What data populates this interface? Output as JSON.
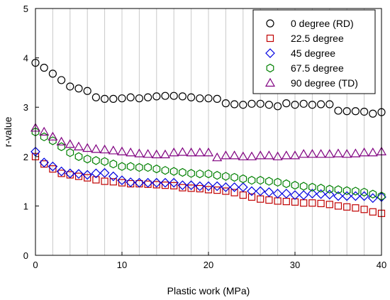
{
  "chart_data": {
    "type": "scatter",
    "xlabel": "Plastic work (MPa)",
    "ylabel": "r-value",
    "xlim": [
      0,
      40
    ],
    "ylim": [
      0,
      5
    ],
    "xticks": [
      0,
      10,
      20,
      30,
      40
    ],
    "yticks": [
      0,
      1,
      2,
      3,
      4,
      5
    ],
    "grid": "vertical",
    "legend_position": "top-right",
    "series": [
      {
        "name": "0 degree (RD)",
        "marker": "circle",
        "color": "#000000",
        "x": [
          0,
          1,
          2,
          3,
          4,
          5,
          6,
          7,
          8,
          9,
          10,
          11,
          12,
          13,
          14,
          15,
          16,
          17,
          18,
          19,
          20,
          21,
          22,
          23,
          24,
          25,
          26,
          27,
          28,
          29,
          30,
          31,
          32,
          33,
          34,
          35,
          36,
          37,
          38,
          39,
          40
        ],
        "y": [
          3.9,
          3.8,
          3.68,
          3.55,
          3.42,
          3.38,
          3.33,
          3.2,
          3.17,
          3.17,
          3.18,
          3.2,
          3.18,
          3.2,
          3.22,
          3.23,
          3.23,
          3.22,
          3.2,
          3.18,
          3.18,
          3.17,
          3.08,
          3.06,
          3.05,
          3.07,
          3.07,
          3.05,
          3.02,
          3.08,
          3.05,
          3.07,
          3.05,
          3.06,
          3.06,
          2.93,
          2.92,
          2.92,
          2.91,
          2.87,
          2.9
        ]
      },
      {
        "name": "22.5 degree",
        "marker": "square",
        "color": "#c00000",
        "x": [
          0,
          1,
          2,
          3,
          4,
          5,
          6,
          7,
          8,
          9,
          10,
          11,
          12,
          13,
          14,
          15,
          16,
          17,
          18,
          19,
          20,
          21,
          22,
          23,
          24,
          25,
          26,
          27,
          28,
          29,
          30,
          31,
          32,
          33,
          34,
          35,
          36,
          37,
          38,
          39,
          40
        ],
        "y": [
          2.0,
          1.85,
          1.75,
          1.66,
          1.63,
          1.6,
          1.57,
          1.53,
          1.5,
          1.49,
          1.47,
          1.45,
          1.45,
          1.44,
          1.43,
          1.42,
          1.41,
          1.37,
          1.36,
          1.35,
          1.33,
          1.32,
          1.3,
          1.27,
          1.22,
          1.18,
          1.14,
          1.12,
          1.1,
          1.09,
          1.08,
          1.06,
          1.06,
          1.05,
          1.03,
          1.0,
          0.98,
          0.96,
          0.93,
          0.88,
          0.85
        ]
      },
      {
        "name": "45 degree",
        "marker": "diamond",
        "color": "#0000e0",
        "x": [
          0,
          1,
          2,
          3,
          4,
          5,
          6,
          7,
          8,
          9,
          10,
          11,
          12,
          13,
          14,
          15,
          16,
          17,
          18,
          19,
          20,
          21,
          22,
          23,
          24,
          25,
          26,
          27,
          28,
          29,
          30,
          31,
          32,
          33,
          34,
          35,
          36,
          37,
          38,
          39,
          40
        ],
        "y": [
          2.1,
          1.88,
          1.8,
          1.7,
          1.66,
          1.65,
          1.63,
          1.66,
          1.67,
          1.6,
          1.52,
          1.48,
          1.47,
          1.47,
          1.47,
          1.47,
          1.47,
          1.42,
          1.42,
          1.4,
          1.4,
          1.4,
          1.38,
          1.38,
          1.38,
          1.3,
          1.3,
          1.28,
          1.25,
          1.25,
          1.22,
          1.22,
          1.25,
          1.24,
          1.23,
          1.2,
          1.2,
          1.2,
          1.2,
          1.16,
          1.18
        ]
      },
      {
        "name": "67.5 degree",
        "marker": "hexagon",
        "color": "#008000",
        "x": [
          0,
          1,
          2,
          3,
          4,
          5,
          6,
          7,
          8,
          9,
          10,
          11,
          12,
          13,
          14,
          15,
          16,
          17,
          18,
          19,
          20,
          21,
          22,
          23,
          24,
          25,
          26,
          27,
          28,
          29,
          30,
          31,
          32,
          33,
          34,
          35,
          36,
          37,
          38,
          39,
          40
        ],
        "y": [
          2.5,
          2.4,
          2.32,
          2.2,
          2.08,
          2.0,
          1.95,
          1.92,
          1.9,
          1.85,
          1.8,
          1.8,
          1.78,
          1.78,
          1.75,
          1.72,
          1.7,
          1.68,
          1.66,
          1.65,
          1.65,
          1.62,
          1.6,
          1.58,
          1.55,
          1.52,
          1.52,
          1.5,
          1.48,
          1.45,
          1.42,
          1.4,
          1.38,
          1.36,
          1.34,
          1.33,
          1.31,
          1.3,
          1.28,
          1.24,
          1.2
        ]
      },
      {
        "name": "90 degree (TD)",
        "marker": "triangle",
        "color": "#800080",
        "x": [
          0,
          1,
          2,
          3,
          4,
          5,
          6,
          7,
          8,
          9,
          10,
          11,
          12,
          13,
          14,
          15,
          16,
          17,
          18,
          19,
          20,
          21,
          22,
          23,
          24,
          25,
          26,
          27,
          28,
          29,
          30,
          31,
          32,
          33,
          34,
          35,
          36,
          37,
          38,
          39,
          40
        ],
        "y": [
          2.58,
          2.5,
          2.4,
          2.3,
          2.25,
          2.2,
          2.17,
          2.15,
          2.14,
          2.12,
          2.1,
          2.08,
          2.06,
          2.05,
          2.04,
          2.04,
          2.08,
          2.09,
          2.08,
          2.08,
          2.08,
          1.98,
          2.02,
          2.02,
          2.0,
          2.0,
          2.02,
          2.02,
          2.0,
          2.02,
          2.02,
          2.05,
          2.05,
          2.05,
          2.05,
          2.06,
          2.05,
          2.06,
          2.08,
          2.08,
          2.1
        ]
      }
    ]
  }
}
